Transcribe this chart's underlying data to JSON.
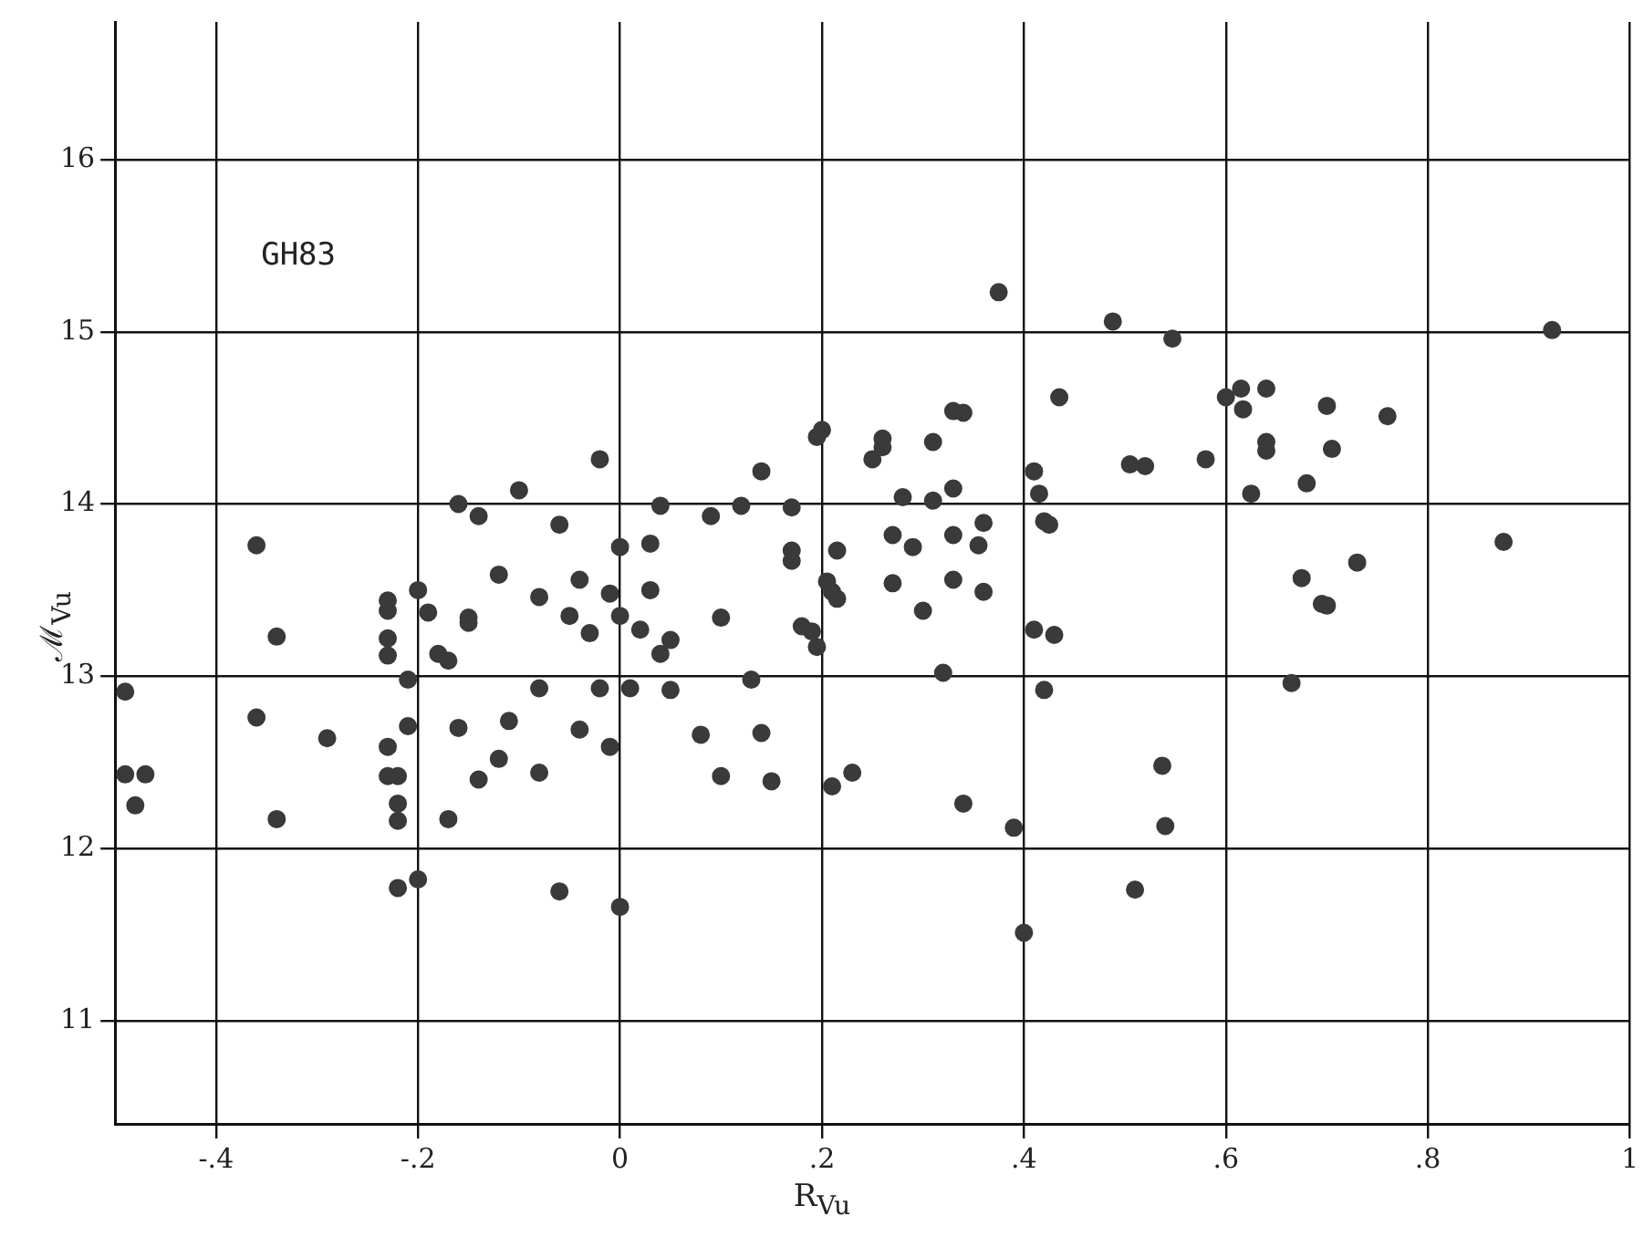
{
  "chart_data": {
    "type": "scatter",
    "xlabel": "R$_{Vu}$",
    "ylabel": "ℳ$_{Vu}$",
    "annotations": [
      "GH83"
    ],
    "xlim": [
      -0.5,
      1.0
    ],
    "ylim": [
      10.4,
      16.8
    ],
    "xticks": [
      {
        "value": -0.4,
        "label": "-.4"
      },
      {
        "value": -0.2,
        "label": "-.2"
      },
      0,
      {
        "value": 0.2,
        "label": ".2"
      },
      {
        "value": 0.4,
        "label": ".4"
      },
      {
        "value": 0.6,
        "label": ".6"
      },
      {
        "value": 0.8,
        "label": ".8"
      },
      1
    ],
    "yticks": [
      11,
      12,
      13,
      14,
      15,
      16
    ],
    "grid": true,
    "marker": "circle",
    "series": [
      {
        "color": "#3a3a3a",
        "x": [
          -0.49,
          -0.49,
          -0.48,
          -0.47,
          -0.36,
          -0.34,
          -0.36,
          -0.34,
          -0.29,
          -0.23,
          -0.23,
          -0.23,
          -0.23,
          -0.23,
          -0.23,
          -0.22,
          -0.22,
          -0.22,
          -0.22,
          -0.2,
          -0.21,
          -0.21,
          -0.2,
          -0.19,
          -0.18,
          -0.17,
          -0.17,
          -0.16,
          -0.15,
          -0.15,
          -0.14,
          -0.16,
          -0.14,
          -0.12,
          -0.12,
          -0.11,
          -0.1,
          -0.08,
          -0.08,
          -0.08,
          -0.06,
          -0.06,
          -0.05,
          -0.04,
          -0.04,
          -0.03,
          -0.02,
          -0.02,
          -0.01,
          -0.01,
          0.0,
          0.0,
          0.0,
          0.01,
          0.02,
          0.03,
          0.03,
          0.04,
          0.04,
          0.05,
          0.05,
          0.08,
          0.09,
          0.1,
          0.1,
          0.12,
          0.13,
          0.14,
          0.14,
          0.15,
          0.17,
          0.17,
          0.18,
          0.19,
          0.195,
          0.195,
          0.2,
          0.17,
          0.205,
          0.21,
          0.215,
          0.21,
          0.215,
          0.23,
          0.25,
          0.26,
          0.26,
          0.27,
          0.27,
          0.28,
          0.29,
          0.3,
          0.31,
          0.31,
          0.32,
          0.33,
          0.33,
          0.33,
          0.33,
          0.34,
          0.34,
          0.355,
          0.36,
          0.36,
          0.375,
          0.39,
          0.4,
          0.41,
          0.41,
          0.415,
          0.42,
          0.425,
          0.42,
          0.43,
          0.435,
          0.488,
          0.547,
          0.505,
          0.52,
          0.58,
          0.6,
          0.615,
          0.64,
          0.617,
          0.64,
          0.64,
          0.625,
          0.7,
          0.76,
          0.705,
          0.68,
          0.875,
          0.73,
          0.675,
          0.695,
          0.7,
          0.665,
          0.537,
          0.54,
          0.51,
          0.923
        ],
        "values": [
          12.91,
          12.43,
          12.25,
          12.43,
          13.76,
          13.23,
          12.76,
          12.17,
          12.64,
          13.44,
          13.38,
          13.22,
          13.12,
          12.59,
          12.42,
          12.42,
          12.26,
          12.16,
          11.77,
          11.82,
          12.71,
          12.98,
          13.5,
          13.37,
          13.13,
          13.09,
          12.17,
          14.0,
          13.34,
          13.31,
          13.93,
          12.7,
          12.4,
          13.59,
          12.52,
          12.74,
          14.08,
          12.44,
          13.46,
          12.93,
          11.75,
          13.88,
          13.35,
          13.56,
          12.69,
          13.25,
          14.26,
          12.93,
          12.59,
          13.48,
          13.75,
          13.35,
          11.66,
          12.93,
          13.27,
          13.5,
          13.77,
          13.13,
          13.99,
          12.92,
          13.21,
          12.66,
          13.93,
          12.42,
          13.34,
          13.99,
          12.98,
          12.67,
          14.19,
          12.39,
          13.73,
          13.67,
          13.29,
          13.26,
          13.17,
          14.39,
          14.43,
          13.98,
          13.55,
          13.49,
          13.45,
          12.36,
          13.73,
          12.44,
          14.26,
          14.33,
          14.38,
          13.54,
          13.82,
          14.04,
          13.75,
          13.38,
          14.36,
          14.02,
          13.02,
          14.09,
          13.82,
          13.56,
          14.54,
          14.53,
          12.26,
          13.76,
          13.49,
          13.89,
          15.23,
          12.12,
          11.51,
          14.19,
          13.27,
          14.06,
          13.9,
          13.88,
          12.92,
          13.24,
          14.62,
          15.06,
          14.96,
          14.23,
          14.22,
          14.26,
          14.62,
          14.67,
          14.67,
          14.55,
          14.36,
          14.31,
          14.06,
          14.57,
          14.51,
          14.32,
          14.12,
          13.78,
          13.66,
          13.57,
          13.42,
          13.41,
          12.96,
          12.48,
          12.13,
          11.76,
          15.01
        ]
      }
    ]
  }
}
